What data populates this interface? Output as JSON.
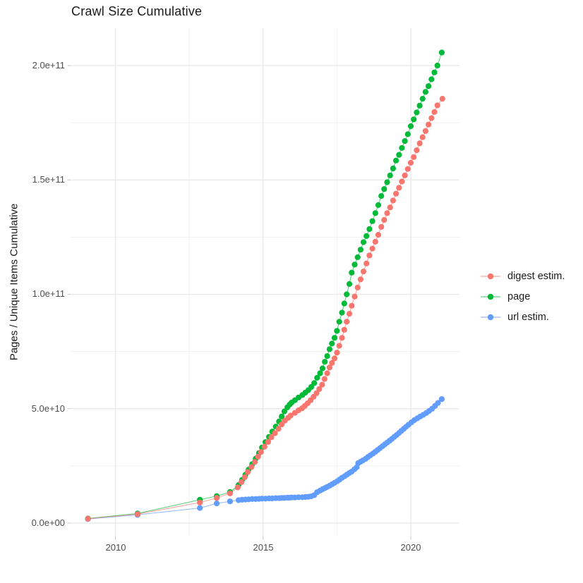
{
  "chart_data": {
    "type": "line",
    "title": "Crawl Size Cumulative",
    "xlabel": "",
    "ylabel": "Pages / Unique Items Cumulative",
    "grid": true,
    "legend_position": "right",
    "points_visible": true,
    "xlim": [
      2008.5,
      2021.65
    ],
    "ylim": [
      0,
      216000000000.0
    ],
    "x_major_ticks": [
      2010,
      2015,
      2020
    ],
    "x_tick_labels": [
      "2010",
      "2015",
      "2020"
    ],
    "x_minor_gridlines": [
      2012.5,
      2017.5
    ],
    "y_major_ticks": [
      0,
      50000000000.0,
      100000000000.0,
      150000000000.0,
      200000000000.0
    ],
    "y_tick_labels": [
      "0.0e+00",
      "5.0e+10",
      "1.0e+11",
      "1.5e+11",
      "2.0e+11"
    ],
    "y_minor_gridlines": [
      25000000000.0,
      75000000000.0,
      125000000000.0,
      175000000000.0
    ],
    "y_unit": "billions (1e9) of pages / unique items",
    "series": [
      {
        "name": "digest estim.",
        "color": "#F8766D",
        "points": [
          [
            2009.07,
            1.9
          ],
          [
            2010.75,
            3.9
          ],
          [
            2012.86,
            9.0
          ],
          [
            2013.43,
            11.0
          ],
          [
            2013.88,
            13.0
          ],
          [
            2014.14,
            15.6
          ],
          [
            2014.27,
            17.9
          ],
          [
            2014.38,
            20.1
          ],
          [
            2014.48,
            22.3
          ],
          [
            2014.61,
            24.5
          ],
          [
            2014.72,
            26.7
          ],
          [
            2014.83,
            29.0
          ],
          [
            2014.93,
            31.1
          ],
          [
            2015.05,
            33.4
          ],
          [
            2015.17,
            35.5
          ],
          [
            2015.28,
            37.5
          ],
          [
            2015.4,
            39.3
          ],
          [
            2015.52,
            41.2
          ],
          [
            2015.63,
            43.1
          ],
          [
            2015.74,
            44.8
          ],
          [
            2015.85,
            46.0
          ],
          [
            2015.93,
            47.0
          ],
          [
            2016.08,
            48.2
          ],
          [
            2016.2,
            49.3
          ],
          [
            2016.32,
            50.2
          ],
          [
            2016.41,
            51.2
          ],
          [
            2016.51,
            52.4
          ],
          [
            2016.61,
            53.7
          ],
          [
            2016.71,
            55.2
          ],
          [
            2016.81,
            56.8
          ],
          [
            2016.9,
            58.6
          ],
          [
            2017.0,
            60.5
          ],
          [
            2017.08,
            63.0
          ],
          [
            2017.17,
            65.5
          ],
          [
            2017.25,
            68.0
          ],
          [
            2017.33,
            70.0
          ],
          [
            2017.42,
            72.0
          ],
          [
            2017.5,
            74.5
          ],
          [
            2017.58,
            77.5
          ],
          [
            2017.67,
            81.0
          ],
          [
            2017.75,
            84.5
          ],
          [
            2017.83,
            88.0
          ],
          [
            2017.92,
            91.5
          ],
          [
            2018.0,
            95.0
          ],
          [
            2018.1,
            99.0
          ],
          [
            2018.2,
            103.0
          ],
          [
            2018.3,
            106.5
          ],
          [
            2018.4,
            110.0
          ],
          [
            2018.5,
            113.5
          ],
          [
            2018.6,
            117.0
          ],
          [
            2018.7,
            120.0
          ],
          [
            2018.8,
            123.0
          ],
          [
            2018.9,
            126.0
          ],
          [
            2019.0,
            129.5
          ],
          [
            2019.1,
            132.5
          ],
          [
            2019.2,
            135.5
          ],
          [
            2019.3,
            138.0
          ],
          [
            2019.4,
            141.0
          ],
          [
            2019.5,
            144.0
          ],
          [
            2019.6,
            146.6
          ],
          [
            2019.7,
            149.3
          ],
          [
            2019.8,
            152.0
          ],
          [
            2019.9,
            154.8
          ],
          [
            2020.0,
            157.5
          ],
          [
            2020.1,
            160.0
          ],
          [
            2020.2,
            163.0
          ],
          [
            2020.3,
            166.0
          ],
          [
            2020.4,
            168.7
          ],
          [
            2020.5,
            171.4
          ],
          [
            2020.6,
            174.2
          ],
          [
            2020.7,
            177.0
          ],
          [
            2020.8,
            179.7
          ],
          [
            2020.9,
            182.6
          ],
          [
            2021.07,
            185.5
          ]
        ]
      },
      {
        "name": "page",
        "color": "#00BA38",
        "points": [
          [
            2009.07,
            2.0
          ],
          [
            2010.75,
            4.2
          ],
          [
            2012.86,
            10.2
          ],
          [
            2013.43,
            11.8
          ],
          [
            2013.88,
            13.6
          ],
          [
            2014.17,
            16.6
          ],
          [
            2014.29,
            18.9
          ],
          [
            2014.4,
            21.1
          ],
          [
            2014.51,
            23.4
          ],
          [
            2014.63,
            25.8
          ],
          [
            2014.75,
            28.2
          ],
          [
            2014.86,
            30.6
          ],
          [
            2014.96,
            33.0
          ],
          [
            2015.08,
            35.4
          ],
          [
            2015.2,
            37.7
          ],
          [
            2015.31,
            40.0
          ],
          [
            2015.43,
            42.2
          ],
          [
            2015.54,
            44.4
          ],
          [
            2015.63,
            46.6
          ],
          [
            2015.72,
            48.8
          ],
          [
            2015.82,
            50.6
          ],
          [
            2015.9,
            51.8
          ],
          [
            2015.97,
            52.7
          ],
          [
            2016.08,
            53.7
          ],
          [
            2016.2,
            54.9
          ],
          [
            2016.33,
            56.0
          ],
          [
            2016.43,
            57.0
          ],
          [
            2016.53,
            58.1
          ],
          [
            2016.63,
            59.5
          ],
          [
            2016.73,
            61.2
          ],
          [
            2016.83,
            63.5
          ],
          [
            2016.93,
            65.5
          ],
          [
            2017.01,
            67.6
          ],
          [
            2017.09,
            70.5
          ],
          [
            2017.17,
            73.0
          ],
          [
            2017.25,
            76.0
          ],
          [
            2017.33,
            78.5
          ],
          [
            2017.42,
            81.0
          ],
          [
            2017.5,
            84.0
          ],
          [
            2017.58,
            88.0
          ],
          [
            2017.67,
            92.0
          ],
          [
            2017.75,
            96.0
          ],
          [
            2017.83,
            100.0
          ],
          [
            2017.92,
            104.5
          ],
          [
            2018.0,
            109.5
          ],
          [
            2018.1,
            113.0
          ],
          [
            2018.2,
            116.2
          ],
          [
            2018.3,
            119.5
          ],
          [
            2018.4,
            122.8
          ],
          [
            2018.5,
            125.5
          ],
          [
            2018.6,
            128.5
          ],
          [
            2018.7,
            132.0
          ],
          [
            2018.8,
            135.5
          ],
          [
            2018.9,
            139.0
          ],
          [
            2019.0,
            143.0
          ],
          [
            2019.1,
            146.0
          ],
          [
            2019.2,
            149.0
          ],
          [
            2019.3,
            152.0
          ],
          [
            2019.4,
            155.0
          ],
          [
            2019.5,
            158.5
          ],
          [
            2019.6,
            161.0
          ],
          [
            2019.7,
            164.0
          ],
          [
            2019.8,
            167.0
          ],
          [
            2019.9,
            170.0
          ],
          [
            2020.0,
            173.5
          ],
          [
            2020.1,
            176.5
          ],
          [
            2020.2,
            179.5
          ],
          [
            2020.3,
            182.5
          ],
          [
            2020.4,
            185.5
          ],
          [
            2020.5,
            188.5
          ],
          [
            2020.6,
            191.0
          ],
          [
            2020.7,
            194.0
          ],
          [
            2020.8,
            197.0
          ],
          [
            2020.9,
            200.0
          ],
          [
            2021.05,
            205.7
          ]
        ]
      },
      {
        "name": "url estim.",
        "color": "#619CFF",
        "points": [
          [
            2009.07,
            1.8
          ],
          [
            2010.75,
            3.6
          ],
          [
            2012.86,
            6.6
          ],
          [
            2013.43,
            8.6
          ],
          [
            2013.88,
            9.5
          ],
          [
            2014.17,
            10.0
          ],
          [
            2014.29,
            10.2
          ],
          [
            2014.4,
            10.3
          ],
          [
            2014.51,
            10.4
          ],
          [
            2014.63,
            10.5
          ],
          [
            2014.75,
            10.5
          ],
          [
            2014.86,
            10.6
          ],
          [
            2014.96,
            10.7
          ],
          [
            2015.08,
            10.7
          ],
          [
            2015.2,
            10.8
          ],
          [
            2015.31,
            10.8
          ],
          [
            2015.43,
            10.9
          ],
          [
            2015.54,
            10.9
          ],
          [
            2015.63,
            11.0
          ],
          [
            2015.72,
            11.0
          ],
          [
            2015.82,
            11.1
          ],
          [
            2015.9,
            11.1
          ],
          [
            2015.97,
            11.2
          ],
          [
            2016.08,
            11.2
          ],
          [
            2016.2,
            11.3
          ],
          [
            2016.33,
            11.3
          ],
          [
            2016.43,
            11.4
          ],
          [
            2016.53,
            11.5
          ],
          [
            2016.63,
            11.7
          ],
          [
            2016.73,
            12.2
          ],
          [
            2016.83,
            13.5
          ],
          [
            2016.93,
            14.2
          ],
          [
            2017.01,
            14.8
          ],
          [
            2017.09,
            15.3
          ],
          [
            2017.17,
            15.8
          ],
          [
            2017.26,
            16.4
          ],
          [
            2017.34,
            17.0
          ],
          [
            2017.42,
            17.6
          ],
          [
            2017.51,
            18.3
          ],
          [
            2017.59,
            19.0
          ],
          [
            2017.67,
            19.8
          ],
          [
            2017.76,
            20.5
          ],
          [
            2017.84,
            21.2
          ],
          [
            2017.92,
            21.9
          ],
          [
            2018.0,
            22.5
          ],
          [
            2018.09,
            23.5
          ],
          [
            2018.17,
            24.4
          ],
          [
            2018.22,
            26.2
          ],
          [
            2018.3,
            26.8
          ],
          [
            2018.38,
            27.4
          ],
          [
            2018.47,
            28.1
          ],
          [
            2018.55,
            28.9
          ],
          [
            2018.63,
            29.6
          ],
          [
            2018.72,
            30.4
          ],
          [
            2018.8,
            31.2
          ],
          [
            2018.88,
            32.0
          ],
          [
            2018.96,
            32.8
          ],
          [
            2019.04,
            33.6
          ],
          [
            2019.12,
            34.4
          ],
          [
            2019.2,
            35.2
          ],
          [
            2019.28,
            36.0
          ],
          [
            2019.36,
            36.8
          ],
          [
            2019.44,
            37.7
          ],
          [
            2019.52,
            38.5
          ],
          [
            2019.6,
            39.4
          ],
          [
            2019.68,
            40.3
          ],
          [
            2019.76,
            41.2
          ],
          [
            2019.84,
            42.1
          ],
          [
            2019.92,
            43.0
          ],
          [
            2020.02,
            44.0
          ],
          [
            2020.12,
            45.0
          ],
          [
            2020.22,
            45.8
          ],
          [
            2020.32,
            46.6
          ],
          [
            2020.42,
            47.3
          ],
          [
            2020.52,
            48.1
          ],
          [
            2020.62,
            49.0
          ],
          [
            2020.72,
            50.0
          ],
          [
            2020.82,
            51.2
          ],
          [
            2020.92,
            52.5
          ],
          [
            2021.05,
            54.2
          ]
        ]
      }
    ]
  },
  "legend": {
    "items": [
      {
        "label": "digest estim.",
        "color": "#F8766D"
      },
      {
        "label": "page",
        "color": "#00BA38"
      },
      {
        "label": "url estim.",
        "color": "#619CFF"
      }
    ]
  },
  "colors": {
    "background": "#FFFFFF",
    "grid_major": "#E7E7E7",
    "grid_minor": "#F0F0F0",
    "tick": "#CFCFCF",
    "tick_label": "#4D4D4D",
    "text": "#1A1A1A"
  }
}
